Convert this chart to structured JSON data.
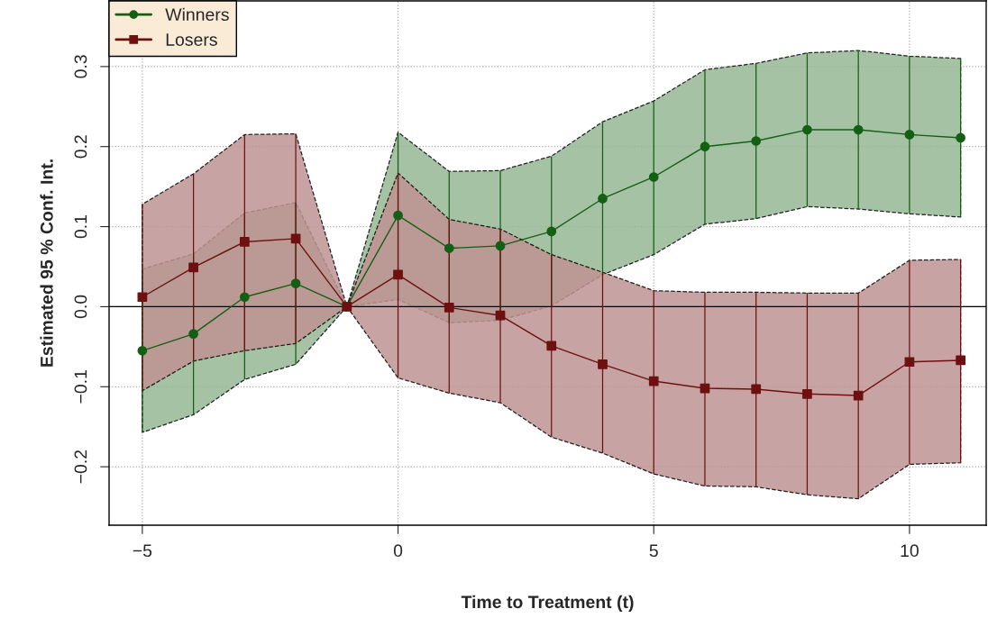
{
  "chart_data": {
    "type": "line",
    "xlabel": "Time to Treatment (t)",
    "ylabel": "Estimated 95 % Conf. Int.",
    "x": [
      -5,
      -4,
      -3,
      -2,
      -1,
      0,
      1,
      2,
      3,
      4,
      5,
      6,
      7,
      8,
      9,
      10,
      11
    ],
    "series": [
      {
        "name": "Winners",
        "color": "#145f14",
        "marker": "circle",
        "errors": [
          [
            -0.157,
            0.047
          ],
          [
            -0.135,
            0.066
          ],
          [
            -0.091,
            0.117
          ],
          [
            -0.072,
            0.13
          ],
          null,
          [
            0.009,
            0.218
          ],
          [
            -0.02,
            0.169
          ],
          [
            -0.017,
            0.17
          ],
          [
            0.001,
            0.188
          ],
          [
            0.04,
            0.231
          ],
          [
            0.065,
            0.257
          ],
          [
            0.103,
            0.296
          ],
          [
            0.11,
            0.304
          ],
          [
            0.125,
            0.317
          ],
          [
            0.122,
            0.32
          ],
          [
            0.116,
            0.313
          ],
          [
            0.112,
            0.31
          ]
        ],
        "values": [
          -0.055,
          -0.034,
          0.012,
          0.029,
          0,
          0.114,
          0.073,
          0.076,
          0.094,
          0.135,
          0.162,
          0.2,
          0.207,
          0.221,
          0.221,
          0.215,
          0.211
        ],
        "lower": [
          -0.157,
          -0.135,
          -0.091,
          -0.072,
          0,
          0.009,
          -0.02,
          -0.017,
          0.001,
          0.04,
          0.065,
          0.103,
          0.11,
          0.125,
          0.122,
          0.116,
          0.112
        ],
        "upper": [
          0.047,
          0.066,
          0.117,
          0.13,
          0,
          0.218,
          0.169,
          0.17,
          0.188,
          0.231,
          0.257,
          0.296,
          0.304,
          0.317,
          0.32,
          0.313,
          0.31
        ]
      },
      {
        "name": "Losers",
        "color": "#6e1010",
        "marker": "square",
        "errors": [
          [
            -0.105,
            0.128
          ],
          [
            -0.068,
            0.166
          ],
          [
            -0.055,
            0.215
          ],
          [
            -0.046,
            0.216
          ],
          null,
          [
            -0.089,
            0.167
          ],
          [
            -0.108,
            0.109
          ],
          [
            -0.12,
            0.097
          ],
          [
            -0.163,
            0.065
          ],
          [
            -0.183,
            0.043
          ],
          [
            -0.209,
            0.02
          ],
          [
            -0.224,
            0.018
          ],
          [
            -0.225,
            0.018
          ],
          [
            -0.235,
            0.017
          ],
          [
            -0.24,
            0.017
          ],
          [
            -0.197,
            0.058
          ],
          [
            -0.195,
            0.059
          ]
        ],
        "values": [
          0.012,
          0.049,
          0.081,
          0.085,
          0,
          0.04,
          -0.001,
          -0.011,
          -0.049,
          -0.072,
          -0.093,
          -0.102,
          -0.103,
          -0.109,
          -0.111,
          -0.069,
          -0.067
        ],
        "lower": [
          -0.105,
          -0.068,
          -0.055,
          -0.046,
          0,
          -0.089,
          -0.108,
          -0.12,
          -0.163,
          -0.183,
          -0.209,
          -0.224,
          -0.225,
          -0.235,
          -0.24,
          -0.197,
          -0.195
        ],
        "upper": [
          0.128,
          0.166,
          0.215,
          0.216,
          0,
          0.167,
          0.109,
          0.097,
          0.065,
          0.043,
          0.02,
          0.018,
          0.018,
          0.017,
          0.017,
          0.058,
          0.059
        ]
      }
    ],
    "xlim": [
      -5.65,
      11.5
    ],
    "ylim": [
      -0.273,
      0.382
    ],
    "xticks": [
      {
        "value": -5,
        "label": "−5"
      },
      0,
      5,
      10
    ],
    "yticks": [
      {
        "value": -0.2,
        "label": "−0.2"
      },
      {
        "value": -0.1,
        "label": "−0.1"
      },
      {
        "value": 0,
        "label": "0.0"
      },
      0.1,
      0.2,
      0.3
    ],
    "ref_lines": [
      {
        "axis": "y",
        "value": 0,
        "color": "#000000",
        "line_style": "solid"
      }
    ],
    "grid": true,
    "legend": "top left",
    "line_style": "solid"
  }
}
